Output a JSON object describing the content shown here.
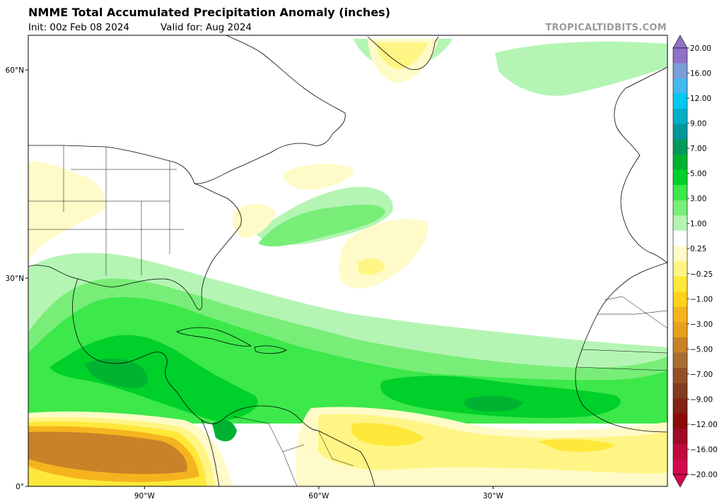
{
  "header": {
    "title": "NMME Total Accumulated Precipitation Anomaly (inches)",
    "init": "Init: 00z Feb 08 2024",
    "valid": "Valid for: Aug 2024",
    "credit": "TROPICALTIDBITS.COM"
  },
  "map": {
    "lat_labels": [
      "60°N",
      "30°N",
      "0°"
    ],
    "lon_labels": [
      "90°W",
      "60°W",
      "30°W"
    ],
    "lat_values": [
      60,
      30,
      0
    ],
    "lon_values": [
      -90,
      -60,
      -30
    ],
    "extent": {
      "lon_min": -110,
      "lon_max": 0,
      "lat_min": 0,
      "lat_max": 65
    }
  },
  "colorbar": {
    "labels": [
      "20.00",
      "16.00",
      "12.00",
      "9.00",
      "7.00",
      "5.00",
      "3.00",
      "1.00",
      "0.25",
      "−0.25",
      "−1.00",
      "−3.00",
      "−5.00",
      "−7.00",
      "−9.00",
      "−12.00",
      "−16.00",
      "−20.00"
    ],
    "colors": [
      "#9370c8",
      "#7b9ed6",
      "#44b8f0",
      "#00c8f0",
      "#00aec8",
      "#00969a",
      "#009a5a",
      "#00b232",
      "#00d02a",
      "#3ce84a",
      "#78ee78",
      "#b4f5b4",
      "#ffffff",
      "#fffbc8",
      "#fff585",
      "#ffe83a",
      "#ffd21e",
      "#f5b41e",
      "#e6a01e",
      "#c88228",
      "#aa6e32",
      "#965028",
      "#823c1e",
      "#822314",
      "#8c0a0a",
      "#a00a28",
      "#be0a3c",
      "#d20a50"
    ],
    "colors_note": ""
  },
  "palette": {
    "yellow_light": "#fffbc8",
    "yellow": "#fff585",
    "gold": "#ffe83a",
    "orange": "#f5b41e",
    "brown": "#c88228",
    "green_pale": "#b4f5b4",
    "green_light": "#78ee78",
    "green": "#3ce84a",
    "green_mid": "#00d02a",
    "green_dark": "#00b232",
    "teal": "#009a5a",
    "coast": "#000000"
  }
}
